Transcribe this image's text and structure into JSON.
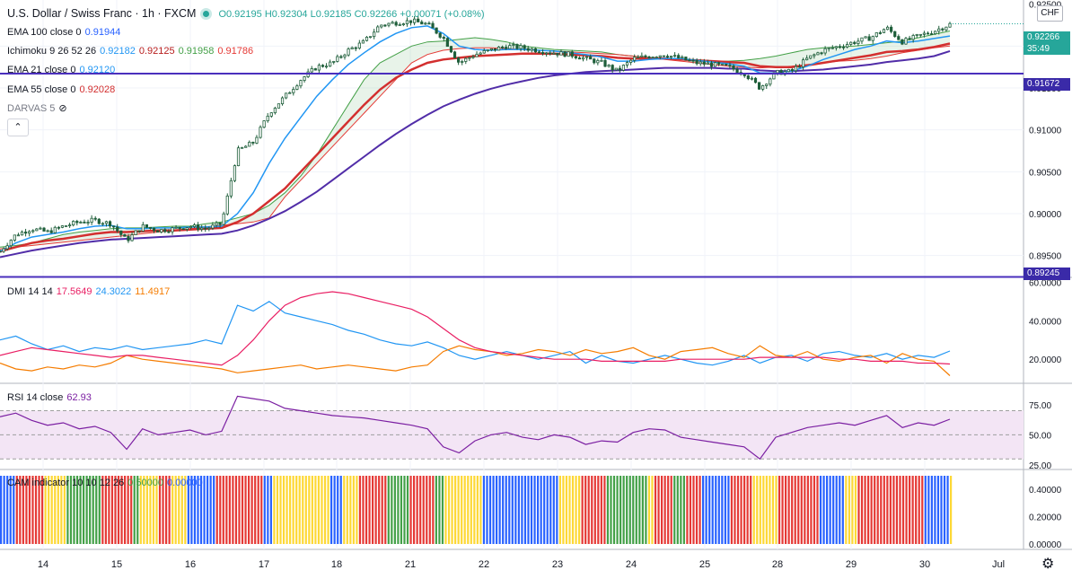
{
  "header": {
    "symbol_title": "U.S. Dollar / Swiss Franc · 1h · FXCM",
    "open": "O0.92195",
    "high": "H0.92304",
    "low": "L0.92185",
    "close": "C0.92266",
    "change": "+0.00071 (+0.08%)",
    "currency_button": "CHF"
  },
  "indicators": {
    "ema100": {
      "label": "EMA 100 close 0",
      "value": "0.91944",
      "color": "#2962ff"
    },
    "ichimoku": {
      "label": "Ichimoku 9 26 52 26",
      "v1": "0.92182",
      "v2": "0.92125",
      "v3": "0.91958",
      "v4": "0.91786",
      "c1": "#2196f3",
      "c2": "#b71c1c",
      "c3": "#43a047",
      "c4": "#e53935"
    },
    "ema21": {
      "label": "EMA 21 close 0",
      "value": "0.92120",
      "color": "#2196f3"
    },
    "ema55": {
      "label": "EMA 55 close 0",
      "value": "0.92028",
      "color": "#d32f2f"
    },
    "darvas": {
      "label": "DARVAS 5"
    },
    "dmi": {
      "label": "DMI 14 14",
      "v1": "17.5649",
      "v2": "24.3022",
      "v3": "11.4917",
      "c1": "#e91e63",
      "c2": "#2196f3",
      "c3": "#f57c00"
    },
    "rsi": {
      "label": "RSI 14 close",
      "value": "62.93",
      "color": "#7b1fa2"
    },
    "cam": {
      "label": "CAM indicator 10 10 12 26",
      "v1": "0.50000",
      "v2": "0.00000"
    }
  },
  "price_axis": {
    "ticks": [
      "0.92000",
      "0.91500",
      "0.91000",
      "0.90500",
      "0.90000",
      "0.89500"
    ],
    "top_partial": "0.92500",
    "current_price": "0.92266",
    "countdown": "35:49",
    "line_high": "0.91672",
    "line_low": "0.89245"
  },
  "dmi_axis": {
    "ticks": [
      "60.0000",
      "40.0000",
      "20.0000"
    ]
  },
  "rsi_axis": {
    "ticks": [
      "75.00",
      "50.00",
      "25.00"
    ]
  },
  "cam_axis": {
    "ticks": [
      "0.40000",
      "0.20000",
      "0.00000"
    ]
  },
  "time_axis": {
    "labels": [
      "14",
      "15",
      "16",
      "17",
      "18",
      "21",
      "22",
      "23",
      "24",
      "25",
      "28",
      "29",
      "30",
      "Jul"
    ]
  },
  "colors": {
    "bull": "#26a69a",
    "bear": "#ef5350",
    "candle": "#1e5e3a",
    "hline": "#4a2fbd",
    "price_tag": "#26a69a",
    "hline_tag": "#3a2aa8",
    "rsi_band": "#f3e5f5",
    "cam": [
      "#43a047",
      "#fdd835",
      "#2962ff",
      "#e53935"
    ]
  },
  "chart_data": [
    {
      "type": "candlestick",
      "title": "U.S. Dollar / Swiss Franc · 1h · FXCM",
      "ylim": [
        0.8925,
        0.9255
      ],
      "x": [
        "14",
        "15",
        "16",
        "17",
        "18",
        "21",
        "22",
        "23",
        "24",
        "25",
        "28",
        "29",
        "30"
      ],
      "close_path": [
        0.8955,
        0.8975,
        0.8982,
        0.8978,
        0.8985,
        0.899,
        0.8992,
        0.8988,
        0.8968,
        0.8985,
        0.898,
        0.8982,
        0.8985,
        0.8982,
        0.8988,
        0.9075,
        0.9085,
        0.912,
        0.914,
        0.916,
        0.9175,
        0.918,
        0.9195,
        0.9205,
        0.9225,
        0.9228,
        0.923,
        0.9226,
        0.921,
        0.918,
        0.919,
        0.9195,
        0.92,
        0.9198,
        0.9195,
        0.9192,
        0.919,
        0.9185,
        0.918,
        0.917,
        0.9185,
        0.9188,
        0.919,
        0.9185,
        0.918,
        0.9178,
        0.9175,
        0.9168,
        0.915,
        0.9168,
        0.917,
        0.9185,
        0.9195,
        0.92,
        0.9205,
        0.921,
        0.9222,
        0.9205,
        0.9212,
        0.9218,
        0.9226
      ],
      "ema21": [
        0.8955,
        0.8965,
        0.8972,
        0.8975,
        0.8978,
        0.8982,
        0.8985,
        0.8986,
        0.8982,
        0.8982,
        0.8983,
        0.8983,
        0.8984,
        0.8984,
        0.8985,
        0.9,
        0.9025,
        0.906,
        0.909,
        0.9115,
        0.914,
        0.916,
        0.9178,
        0.9192,
        0.9205,
        0.9215,
        0.9222,
        0.9224,
        0.9215,
        0.92,
        0.9196,
        0.9195,
        0.9196,
        0.9196,
        0.9195,
        0.9194,
        0.9192,
        0.919,
        0.9187,
        0.9182,
        0.9182,
        0.9184,
        0.9185,
        0.9185,
        0.9183,
        0.9181,
        0.9179,
        0.9176,
        0.9168,
        0.9168,
        0.917,
        0.9176,
        0.9184,
        0.919,
        0.9196,
        0.92,
        0.9206,
        0.9204,
        0.9206,
        0.9209,
        0.9212
      ],
      "ema55": [
        0.8955,
        0.896,
        0.8965,
        0.8968,
        0.897,
        0.8973,
        0.8976,
        0.8978,
        0.8978,
        0.8979,
        0.898,
        0.898,
        0.8981,
        0.8982,
        0.8983,
        0.899,
        0.9,
        0.9015,
        0.903,
        0.905,
        0.907,
        0.909,
        0.911,
        0.913,
        0.9148,
        0.9162,
        0.9172,
        0.918,
        0.9184,
        0.9186,
        0.9188,
        0.9189,
        0.919,
        0.9191,
        0.9191,
        0.9191,
        0.919,
        0.9189,
        0.9188,
        0.9186,
        0.9185,
        0.9185,
        0.9185,
        0.9184,
        0.9183,
        0.9182,
        0.9181,
        0.918,
        0.9176,
        0.9175,
        0.9175,
        0.9177,
        0.918,
        0.9183,
        0.9186,
        0.9189,
        0.9193,
        0.9194,
        0.9196,
        0.9199,
        0.9203
      ],
      "ema100": [
        0.8948,
        0.8952,
        0.8956,
        0.8959,
        0.8962,
        0.8965,
        0.8967,
        0.8969,
        0.897,
        0.8971,
        0.8972,
        0.8973,
        0.8974,
        0.8975,
        0.8976,
        0.898,
        0.8986,
        0.8994,
        0.9003,
        0.9014,
        0.9026,
        0.904,
        0.9054,
        0.9068,
        0.9082,
        0.9095,
        0.9107,
        0.9118,
        0.9128,
        0.9136,
        0.9143,
        0.9149,
        0.9154,
        0.9158,
        0.9162,
        0.9165,
        0.9167,
        0.9169,
        0.917,
        0.9171,
        0.9172,
        0.9173,
        0.9174,
        0.9174,
        0.9174,
        0.9174,
        0.9173,
        0.9173,
        0.9171,
        0.917,
        0.917,
        0.9171,
        0.9172,
        0.9174,
        0.9176,
        0.9178,
        0.9181,
        0.9183,
        0.9185,
        0.9188,
        0.9194
      ],
      "span_a": [
        0.896,
        0.8962,
        0.8965,
        0.897,
        0.8975,
        0.8978,
        0.898,
        0.8982,
        0.8983,
        0.8983,
        0.8984,
        0.8985,
        0.8985,
        0.8988,
        0.899,
        0.8995,
        0.9,
        0.901,
        0.9025,
        0.9045,
        0.907,
        0.91,
        0.913,
        0.916,
        0.918,
        0.919,
        0.92,
        0.9205,
        0.9206,
        0.9208,
        0.921,
        0.9208,
        0.9205,
        0.92,
        0.9198,
        0.9196,
        0.9195,
        0.9194,
        0.9193,
        0.919,
        0.9188,
        0.9186,
        0.9185,
        0.9184,
        0.9183,
        0.9182,
        0.9182,
        0.9183,
        0.9185,
        0.9188,
        0.9192,
        0.9196,
        0.9198,
        0.9199,
        0.92,
        0.9202,
        0.9204,
        0.9206,
        0.921,
        0.9214,
        0.9218
      ],
      "span_b": [
        0.8958,
        0.896,
        0.8962,
        0.8964,
        0.8966,
        0.8968,
        0.897,
        0.8972,
        0.8974,
        0.8976,
        0.8978,
        0.898,
        0.8982,
        0.8984,
        0.8986,
        0.8988,
        0.899,
        0.8995,
        0.902,
        0.904,
        0.906,
        0.908,
        0.91,
        0.912,
        0.914,
        0.916,
        0.918,
        0.919,
        0.9195,
        0.9197,
        0.9198,
        0.9198,
        0.9197,
        0.9196,
        0.9195,
        0.9194,
        0.9193,
        0.9192,
        0.9191,
        0.919,
        0.9188,
        0.9186,
        0.9184,
        0.9182,
        0.918,
        0.9178,
        0.9176,
        0.9175,
        0.9174,
        0.9175,
        0.9176,
        0.9178,
        0.918,
        0.9182,
        0.9183,
        0.9185,
        0.9188,
        0.9192,
        0.9195,
        0.9198,
        0.92
      ],
      "current_price": 0.92266,
      "horizontal_lines": [
        0.91672,
        0.89245
      ],
      "legend": "top-left"
    },
    {
      "type": "line",
      "title": "DMI 14 14",
      "ylim": [
        8,
        62
      ],
      "series": [
        {
          "name": "+DI",
          "values": [
            30,
            32,
            28,
            25,
            27,
            24,
            26,
            25,
            27,
            25,
            26,
            27,
            28,
            30,
            28,
            48,
            45,
            50,
            44,
            42,
            40,
            38,
            35,
            33,
            30,
            28,
            27,
            29,
            26,
            22,
            20,
            22,
            24,
            22,
            20,
            22,
            24,
            18,
            22,
            19,
            18,
            20,
            22,
            20,
            18,
            17,
            19,
            22,
            18,
            21,
            22,
            19,
            23,
            24,
            22,
            21,
            23,
            20,
            22,
            21,
            24.3
          ]
        },
        {
          "name": "-DI",
          "values": [
            18,
            15,
            14,
            16,
            15,
            17,
            16,
            18,
            22,
            20,
            19,
            18,
            17,
            16,
            15,
            13,
            14,
            15,
            16,
            17,
            15,
            16,
            17,
            16,
            15,
            14,
            16,
            17,
            24,
            27,
            25,
            24,
            22,
            23,
            25,
            24,
            22,
            25,
            23,
            24,
            26,
            22,
            20,
            24,
            25,
            26,
            23,
            21,
            27,
            22,
            21,
            24,
            20,
            19,
            21,
            22,
            18,
            23,
            20,
            19,
            11.49
          ]
        },
        {
          "name": "ADX",
          "values": [
            22,
            24,
            26,
            25,
            24,
            23,
            22,
            21,
            22,
            22,
            21,
            20,
            19,
            18,
            17,
            22,
            30,
            40,
            48,
            52,
            54,
            55,
            54,
            52,
            50,
            48,
            46,
            42,
            36,
            30,
            26,
            24,
            23,
            22,
            21,
            20,
            20,
            20,
            19,
            19,
            19,
            19,
            19,
            20,
            20,
            20,
            20,
            20,
            21,
            21,
            21,
            21,
            21,
            20,
            20,
            19,
            19,
            19,
            18,
            18,
            17.56
          ]
        }
      ]
    },
    {
      "type": "line",
      "title": "RSI 14 close",
      "ylim": [
        22,
        92
      ],
      "bands": [
        30,
        70
      ],
      "series": [
        {
          "name": "RSI",
          "values": [
            65,
            68,
            62,
            58,
            60,
            55,
            57,
            52,
            38,
            55,
            50,
            52,
            54,
            50,
            53,
            82,
            80,
            78,
            72,
            70,
            68,
            66,
            65,
            64,
            62,
            60,
            58,
            55,
            40,
            35,
            45,
            50,
            52,
            48,
            46,
            50,
            48,
            42,
            45,
            44,
            52,
            55,
            54,
            48,
            46,
            44,
            42,
            40,
            30,
            48,
            52,
            56,
            58,
            60,
            58,
            62,
            66,
            56,
            60,
            58,
            62.93
          ]
        }
      ]
    },
    {
      "type": "bar",
      "title": "CAM indicator 10 10 12 26",
      "ylim": [
        0,
        0.5
      ],
      "value": 0.5
    }
  ]
}
